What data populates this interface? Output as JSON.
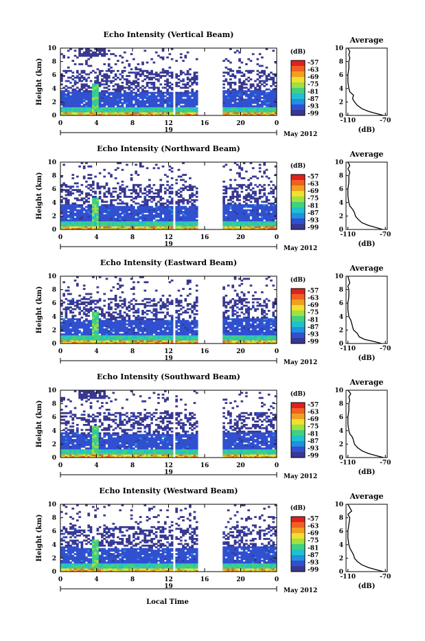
{
  "figure": {
    "xlabel": "Local Time",
    "date_label": "May 2012",
    "day_label": "19",
    "ylabel": "Height (km)",
    "cbar_unit": "(dB)",
    "avg_title": "Average",
    "avg_xlabel": "(dB)"
  },
  "chart_data": [
    {
      "type": "heatmap",
      "title": "Echo Intensity (Vertical Beam)",
      "xlabel": "Local Time",
      "ylabel": "Height (km)",
      "x_ticks": [
        "0",
        "4",
        "8",
        "12",
        "16",
        "20",
        "0"
      ],
      "xlim": [
        0,
        24
      ],
      "y_ticks": [
        "0",
        "2",
        "4",
        "6",
        "8",
        "10"
      ],
      "ylim": [
        0,
        10
      ],
      "colorbar": {
        "unit": "(dB)",
        "ticks": [
          "-57",
          "-63",
          "-69",
          "-75",
          "-81",
          "-87",
          "-93",
          "-99"
        ]
      },
      "data_gaps_hours": [
        [
          12.5,
          12.7
        ],
        [
          15.3,
          18.1
        ]
      ],
      "average_profile": {
        "title": "Average",
        "xlabel": "(dB)",
        "x_ticks": [
          "-110",
          "-70"
        ],
        "xlim": [
          -112,
          -68
        ],
        "y_ticks": [
          "0",
          "2",
          "4",
          "6",
          "8",
          "10"
        ],
        "height_km": [
          0,
          0.3,
          0.6,
          1,
          1.5,
          2,
          2.5,
          3,
          3.5,
          4,
          5,
          6,
          7,
          8,
          8.5,
          9,
          9.5,
          10
        ],
        "value_db": [
          -72,
          -80,
          -88,
          -95,
          -100,
          -103,
          -105,
          -104,
          -108,
          -109,
          -110,
          -110,
          -109,
          -109,
          -108,
          -109,
          -108,
          -110
        ]
      }
    },
    {
      "type": "heatmap",
      "title": "Echo Intensity (Northward Beam)",
      "xlabel": "Local Time",
      "ylabel": "Height (km)",
      "x_ticks": [
        "0",
        "4",
        "8",
        "12",
        "16",
        "20",
        "0"
      ],
      "xlim": [
        0,
        24
      ],
      "y_ticks": [
        "0",
        "2",
        "4",
        "6",
        "8",
        "10"
      ],
      "ylim": [
        0,
        10
      ],
      "colorbar": {
        "unit": "(dB)",
        "ticks": [
          "-57",
          "-63",
          "-69",
          "-75",
          "-81",
          "-87",
          "-93",
          "-99"
        ]
      },
      "data_gaps_hours": [
        [
          12.5,
          12.7
        ],
        [
          15.3,
          18.1
        ]
      ],
      "average_profile": {
        "title": "Average",
        "xlabel": "(dB)",
        "x_ticks": [
          "-110",
          "-70"
        ],
        "xlim": [
          -112,
          -68
        ],
        "y_ticks": [
          "0",
          "2",
          "4",
          "6",
          "8",
          "10"
        ],
        "height_km": [
          0,
          0.3,
          0.6,
          1,
          1.5,
          2,
          2.5,
          3,
          3.5,
          4,
          5,
          6,
          7,
          8,
          8.5,
          9,
          9.5,
          10
        ],
        "value_db": [
          -73,
          -80,
          -88,
          -95,
          -99,
          -102,
          -103,
          -105,
          -108,
          -109,
          -110,
          -110,
          -109,
          -109,
          -108,
          -110,
          -108,
          -110
        ]
      }
    },
    {
      "type": "heatmap",
      "title": "Echo Intensity (Eastward Beam)",
      "xlabel": "Local Time",
      "ylabel": "Height (km)",
      "x_ticks": [
        "0",
        "4",
        "8",
        "12",
        "16",
        "20",
        "0"
      ],
      "xlim": [
        0,
        24
      ],
      "y_ticks": [
        "0",
        "2",
        "4",
        "6",
        "8",
        "10"
      ],
      "ylim": [
        0,
        10
      ],
      "colorbar": {
        "unit": "(dB)",
        "ticks": [
          "-57",
          "-63",
          "-69",
          "-75",
          "-81",
          "-87",
          "-93",
          "-99"
        ]
      },
      "data_gaps_hours": [
        [
          12.5,
          12.7
        ],
        [
          15.3,
          18.1
        ]
      ],
      "average_profile": {
        "title": "Average",
        "xlabel": "(dB)",
        "x_ticks": [
          "-110",
          "-70"
        ],
        "xlim": [
          -112,
          -68
        ],
        "y_ticks": [
          "0",
          "2",
          "4",
          "6",
          "8",
          "10"
        ],
        "height_km": [
          0,
          0.3,
          0.6,
          1,
          1.5,
          2,
          2.5,
          3,
          3.5,
          4,
          5,
          6,
          7,
          8,
          8.5,
          9,
          9.5,
          10
        ],
        "value_db": [
          -74,
          -82,
          -92,
          -98,
          -100,
          -104,
          -105,
          -106,
          -107,
          -109,
          -110,
          -110,
          -109,
          -109,
          -110,
          -108,
          -109,
          -110
        ]
      }
    },
    {
      "type": "heatmap",
      "title": "Echo Intensity (Southward Beam)",
      "xlabel": "Local Time",
      "ylabel": "Height (km)",
      "x_ticks": [
        "0",
        "4",
        "8",
        "12",
        "16",
        "20",
        "0"
      ],
      "xlim": [
        0,
        24
      ],
      "y_ticks": [
        "0",
        "2",
        "4",
        "6",
        "8",
        "10"
      ],
      "ylim": [
        0,
        10
      ],
      "colorbar": {
        "unit": "(dB)",
        "ticks": [
          "-57",
          "-63",
          "-69",
          "-75",
          "-81",
          "-87",
          "-93",
          "-99"
        ]
      },
      "data_gaps_hours": [
        [
          12.5,
          12.7
        ],
        [
          15.3,
          18.1
        ]
      ],
      "average_profile": {
        "title": "Average",
        "xlabel": "(dB)",
        "x_ticks": [
          "-110",
          "-70"
        ],
        "xlim": [
          -112,
          -68
        ],
        "y_ticks": [
          "0",
          "2",
          "4",
          "6",
          "8",
          "10"
        ],
        "height_km": [
          0,
          0.3,
          0.6,
          1,
          1.5,
          2,
          2.5,
          3,
          3.5,
          4,
          5,
          6,
          7,
          8,
          8.5,
          9,
          9.5,
          10
        ],
        "value_db": [
          -72,
          -80,
          -88,
          -95,
          -100,
          -103,
          -104,
          -105,
          -108,
          -109,
          -110,
          -110,
          -109,
          -109,
          -108,
          -109,
          -107,
          -110
        ]
      }
    },
    {
      "type": "heatmap",
      "title": "Echo Intensity (Westward Beam)",
      "xlabel": "Local Time",
      "ylabel": "Height (km)",
      "x_ticks": [
        "0",
        "4",
        "8",
        "12",
        "16",
        "20",
        "0"
      ],
      "xlim": [
        0,
        24
      ],
      "y_ticks": [
        "0",
        "2",
        "4",
        "6",
        "8",
        "10"
      ],
      "ylim": [
        0,
        10
      ],
      "colorbar": {
        "unit": "(dB)",
        "ticks": [
          "-57",
          "-63",
          "-69",
          "-75",
          "-81",
          "-87",
          "-93",
          "-99"
        ]
      },
      "data_gaps_hours": [
        [
          12.5,
          12.7
        ],
        [
          15.3,
          18.1
        ]
      ],
      "average_profile": {
        "title": "Average",
        "xlabel": "(dB)",
        "x_ticks": [
          "-110",
          "-70"
        ],
        "xlim": [
          -112,
          -68
        ],
        "y_ticks": [
          "0",
          "2",
          "4",
          "6",
          "8",
          "10"
        ],
        "height_km": [
          0,
          0.3,
          0.6,
          1,
          1.5,
          2,
          2.5,
          3,
          3.5,
          4,
          5,
          6,
          7,
          8,
          8.5,
          9,
          9.5,
          10
        ],
        "value_db": [
          -72,
          -80,
          -88,
          -95,
          -100,
          -103,
          -104,
          -106,
          -108,
          -109,
          -110,
          -110,
          -109,
          -108,
          -110,
          -106,
          -108,
          -110
        ]
      }
    }
  ],
  "colors": {
    "colorbar_top_to_bottom": [
      "#e02020",
      "#f06020",
      "#f0a020",
      "#f0e030",
      "#a0e040",
      "#40d080",
      "#20c0d0",
      "#2090e0",
      "#3050d0",
      "#383890"
    ],
    "echo_low": "#3a3f8a",
    "echo_mid": "#2f7fd0",
    "echo_high": "#f0c030"
  }
}
